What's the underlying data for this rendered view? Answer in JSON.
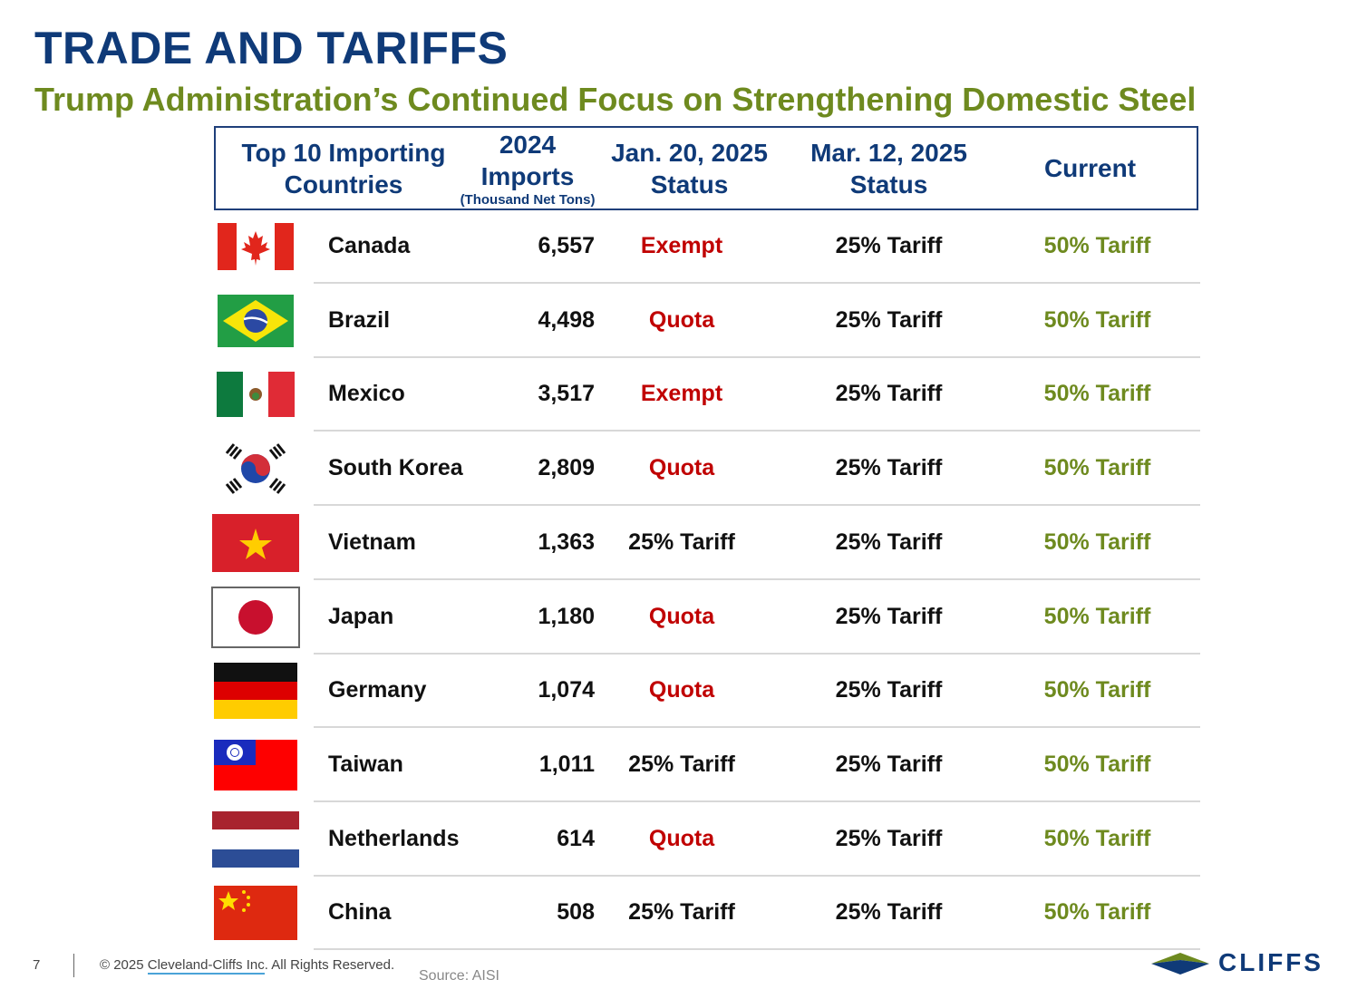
{
  "title": "TRADE AND TARIFFS",
  "subtitle": "Trump Administration’s Continued Focus on Strengthening Domestic Steel",
  "table": {
    "headers": {
      "country_line1": "Top 10 Importing",
      "country_line2": "Countries",
      "imports_line1": "2024",
      "imports_line2": "Imports",
      "imports_unit": "(Thousand Net Tons)",
      "jan_line1": "Jan. 20, 2025",
      "jan_line2": "Status",
      "mar_line1": "Mar. 12, 2025",
      "mar_line2": "Status",
      "current": "Current"
    },
    "rows": [
      {
        "country": "Canada",
        "imports": "6,557",
        "jan": "Exempt",
        "mar": "25% Tariff",
        "current": "50% Tariff",
        "flag": "canada-flag-icon"
      },
      {
        "country": "Brazil",
        "imports": "4,498",
        "jan": "Quota",
        "mar": "25% Tariff",
        "current": "50% Tariff",
        "flag": "brazil-flag-icon"
      },
      {
        "country": "Mexico",
        "imports": "3,517",
        "jan": "Exempt",
        "mar": "25% Tariff",
        "current": "50% Tariff",
        "flag": "mexico-flag-icon"
      },
      {
        "country": "South Korea",
        "imports": "2,809",
        "jan": "Quota",
        "mar": "25% Tariff",
        "current": "50% Tariff",
        "flag": "south-korea-flag-icon"
      },
      {
        "country": "Vietnam",
        "imports": "1,363",
        "jan": "25% Tariff",
        "mar": "25% Tariff",
        "current": "50% Tariff",
        "flag": "vietnam-flag-icon"
      },
      {
        "country": "Japan",
        "imports": "1,180",
        "jan": "Quota",
        "mar": "25% Tariff",
        "current": "50% Tariff",
        "flag": "japan-flag-icon"
      },
      {
        "country": "Germany",
        "imports": "1,074",
        "jan": "Quota",
        "mar": "25% Tariff",
        "current": "50% Tariff",
        "flag": "germany-flag-icon"
      },
      {
        "country": "Taiwan",
        "imports": "1,011",
        "jan": "25% Tariff",
        "mar": "25% Tariff",
        "current": "50% Tariff",
        "flag": "taiwan-flag-icon"
      },
      {
        "country": "Netherlands",
        "imports": "614",
        "jan": "Quota",
        "mar": "25% Tariff",
        "current": "50% Tariff",
        "flag": "netherlands-flag-icon"
      },
      {
        "country": "China",
        "imports": "508",
        "jan": "25% Tariff",
        "mar": "25% Tariff",
        "current": "50% Tariff",
        "flag": "china-flag-icon"
      }
    ]
  },
  "footer": {
    "page_number": "7",
    "copyright_prefix": "© 2025 ",
    "company_link": "Cleveland-Cliffs Inc",
    "copyright_suffix": ". All Rights Reserved.",
    "source": "Source: AISI"
  },
  "logo": {
    "text": "CLIFFS"
  },
  "colors": {
    "title": "#0f3a78",
    "subtitle": "#6e8a1f",
    "exempt_quota": "#c00000",
    "current": "#6e8a1f"
  }
}
